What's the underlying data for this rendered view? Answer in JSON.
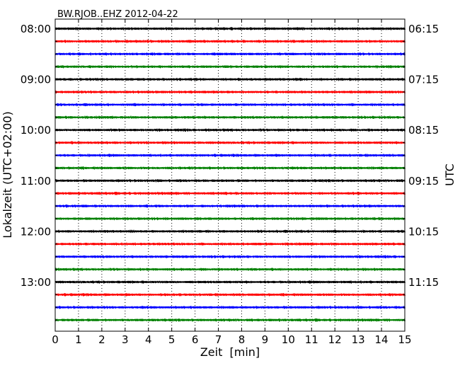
{
  "chart_data": {
    "type": "line",
    "title": "BW.RJOB..EHZ 2012-04-22",
    "xlabel": "Zeit  [min]",
    "ylabel_left": "Lokalzeit (UTC+02:00)",
    "ylabel_right": "UTC",
    "xlim": [
      0,
      15
    ],
    "x_ticks": [
      0,
      1,
      2,
      3,
      4,
      5,
      6,
      7,
      8,
      9,
      10,
      11,
      12,
      13,
      14,
      15
    ],
    "left_tick_labels": [
      "08:00",
      "09:00",
      "10:00",
      "11:00",
      "12:00",
      "13:00"
    ],
    "right_tick_labels": [
      "06:15",
      "07:15",
      "08:15",
      "09:15",
      "10:15",
      "11:15"
    ],
    "labeled_row_every": 4,
    "row_colors": [
      "#000000",
      "#ff0000",
      "#0000ff",
      "#008000"
    ],
    "row_interval_minutes": 15,
    "row_count": 24,
    "grid": "vertical-dotted"
  }
}
